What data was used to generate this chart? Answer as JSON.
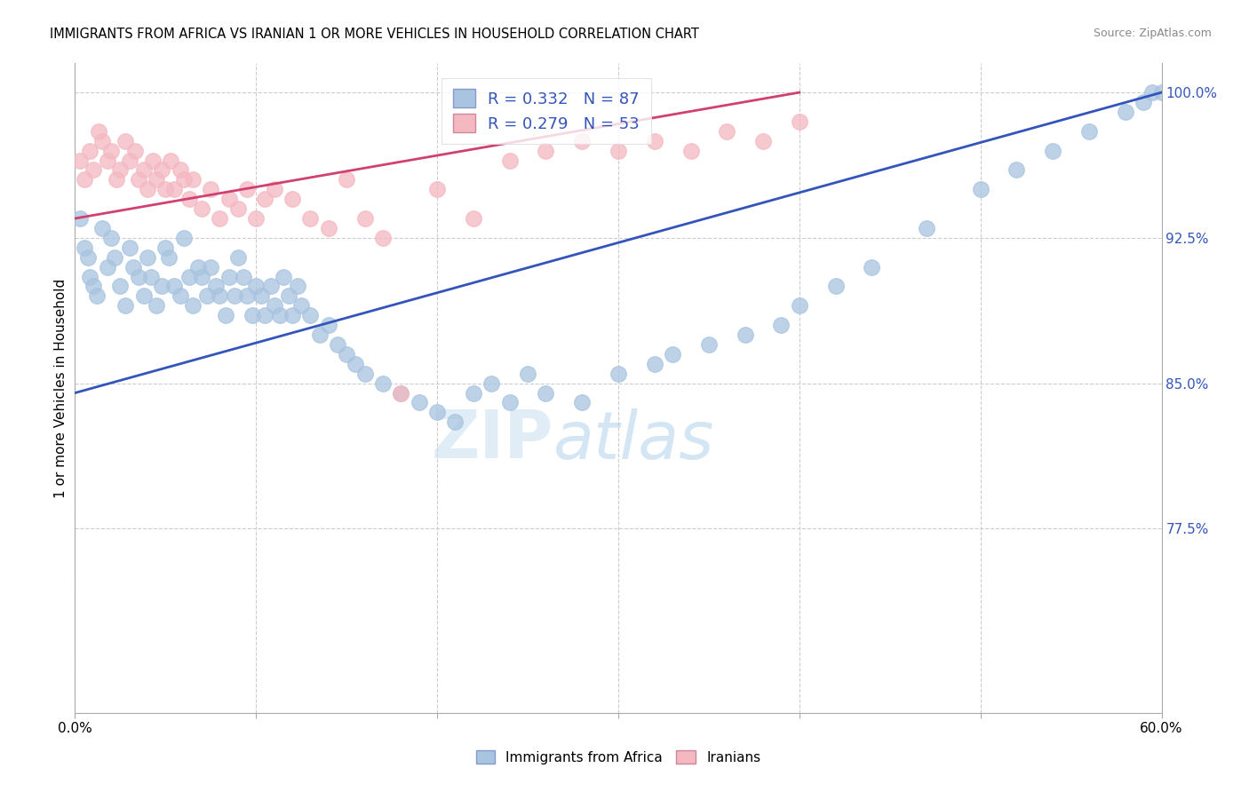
{
  "title": "IMMIGRANTS FROM AFRICA VS IRANIAN 1 OR MORE VEHICLES IN HOUSEHOLD CORRELATION CHART",
  "source": "Source: ZipAtlas.com",
  "ylabel": "1 or more Vehicles in Household",
  "legend_label_blue": "Immigrants from Africa",
  "legend_label_pink": "Iranians",
  "xmin": 0.0,
  "xmax": 60.0,
  "ymin": 68.0,
  "ymax": 101.5,
  "yticks": [
    77.5,
    85.0,
    92.5,
    100.0
  ],
  "xtick_labels_show": [
    "0.0%",
    "60.0%"
  ],
  "blue_color": "#a8c4e0",
  "pink_color": "#f4b8c1",
  "blue_line_color": "#3355bb",
  "pink_line_color": "#d04070",
  "R_blue": 0.332,
  "N_blue": 87,
  "R_pink": 0.279,
  "N_pink": 53,
  "blue_scatter_x": [
    0.3,
    0.5,
    0.7,
    0.8,
    1.0,
    1.2,
    1.5,
    1.8,
    2.0,
    2.2,
    2.5,
    2.8,
    3.0,
    3.2,
    3.5,
    3.8,
    4.0,
    4.2,
    4.5,
    4.8,
    5.0,
    5.2,
    5.5,
    5.8,
    6.0,
    6.3,
    6.5,
    6.8,
    7.0,
    7.3,
    7.5,
    7.8,
    8.0,
    8.3,
    8.5,
    8.8,
    9.0,
    9.3,
    9.5,
    9.8,
    10.0,
    10.3,
    10.5,
    10.8,
    11.0,
    11.3,
    11.5,
    11.8,
    12.0,
    12.3,
    12.5,
    13.0,
    13.5,
    14.0,
    14.5,
    15.0,
    15.5,
    16.0,
    17.0,
    18.0,
    19.0,
    20.0,
    21.0,
    22.0,
    23.0,
    24.0,
    25.0,
    26.0,
    28.0,
    30.0,
    32.0,
    33.0,
    35.0,
    37.0,
    39.0,
    40.0,
    42.0,
    44.0,
    47.0,
    50.0,
    52.0,
    54.0,
    56.0,
    58.0,
    59.0,
    59.5,
    60.0
  ],
  "blue_scatter_y": [
    93.5,
    92.0,
    91.5,
    90.5,
    90.0,
    89.5,
    93.0,
    91.0,
    92.5,
    91.5,
    90.0,
    89.0,
    92.0,
    91.0,
    90.5,
    89.5,
    91.5,
    90.5,
    89.0,
    90.0,
    92.0,
    91.5,
    90.0,
    89.5,
    92.5,
    90.5,
    89.0,
    91.0,
    90.5,
    89.5,
    91.0,
    90.0,
    89.5,
    88.5,
    90.5,
    89.5,
    91.5,
    90.5,
    89.5,
    88.5,
    90.0,
    89.5,
    88.5,
    90.0,
    89.0,
    88.5,
    90.5,
    89.5,
    88.5,
    90.0,
    89.0,
    88.5,
    87.5,
    88.0,
    87.0,
    86.5,
    86.0,
    85.5,
    85.0,
    84.5,
    84.0,
    83.5,
    83.0,
    84.5,
    85.0,
    84.0,
    85.5,
    84.5,
    84.0,
    85.5,
    86.0,
    86.5,
    87.0,
    87.5,
    88.0,
    89.0,
    90.0,
    91.0,
    93.0,
    95.0,
    96.0,
    97.0,
    98.0,
    99.0,
    99.5,
    100.0,
    100.0
  ],
  "pink_scatter_x": [
    0.3,
    0.5,
    0.8,
    1.0,
    1.3,
    1.5,
    1.8,
    2.0,
    2.3,
    2.5,
    2.8,
    3.0,
    3.3,
    3.5,
    3.8,
    4.0,
    4.3,
    4.5,
    4.8,
    5.0,
    5.3,
    5.5,
    5.8,
    6.0,
    6.3,
    6.5,
    7.0,
    7.5,
    8.0,
    8.5,
    9.0,
    9.5,
    10.0,
    10.5,
    11.0,
    12.0,
    13.0,
    14.0,
    15.0,
    16.0,
    17.0,
    18.0,
    20.0,
    22.0,
    24.0,
    26.0,
    28.0,
    30.0,
    32.0,
    34.0,
    36.0,
    38.0,
    40.0
  ],
  "pink_scatter_y": [
    96.5,
    95.5,
    97.0,
    96.0,
    98.0,
    97.5,
    96.5,
    97.0,
    95.5,
    96.0,
    97.5,
    96.5,
    97.0,
    95.5,
    96.0,
    95.0,
    96.5,
    95.5,
    96.0,
    95.0,
    96.5,
    95.0,
    96.0,
    95.5,
    94.5,
    95.5,
    94.0,
    95.0,
    93.5,
    94.5,
    94.0,
    95.0,
    93.5,
    94.5,
    95.0,
    94.5,
    93.5,
    93.0,
    95.5,
    93.5,
    92.5,
    84.5,
    95.0,
    93.5,
    96.5,
    97.0,
    97.5,
    97.0,
    97.5,
    97.0,
    98.0,
    97.5,
    98.5
  ],
  "blue_trendline_x": [
    0.0,
    60.0
  ],
  "blue_trendline_y": [
    84.5,
    100.0
  ],
  "pink_trendline_x": [
    0.0,
    40.0
  ],
  "pink_trendline_y": [
    93.5,
    100.0
  ]
}
